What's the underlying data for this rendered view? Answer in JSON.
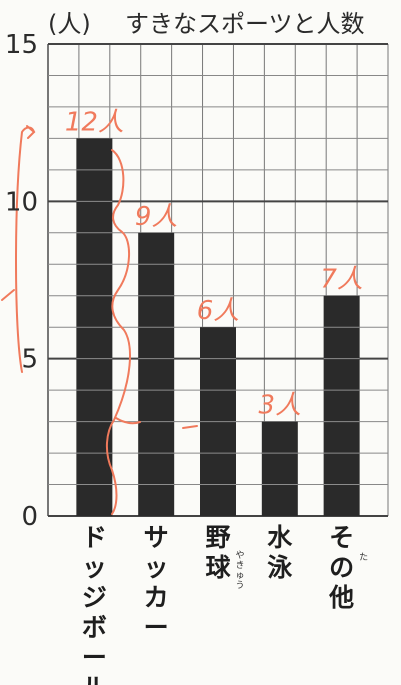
{
  "chart_data": {
    "type": "bar",
    "title": "すきなスポーツと人数",
    "unit_label": "(人)",
    "categories": [
      "ドッジボール",
      "サッカー",
      "野球",
      "水泳",
      "その他"
    ],
    "category_ruby": [
      "",
      "",
      "やきゅう",
      "",
      "た"
    ],
    "values": [
      12,
      9,
      6,
      3,
      7
    ],
    "data_labels": [
      "12人",
      "9人",
      "6人",
      "3人",
      "7人"
    ],
    "ylim": [
      0,
      15
    ],
    "yticks": [
      0,
      5,
      10,
      15
    ],
    "grid": true,
    "bar_color": "#2a2a2a",
    "annotation_color": "#f07a5c"
  }
}
